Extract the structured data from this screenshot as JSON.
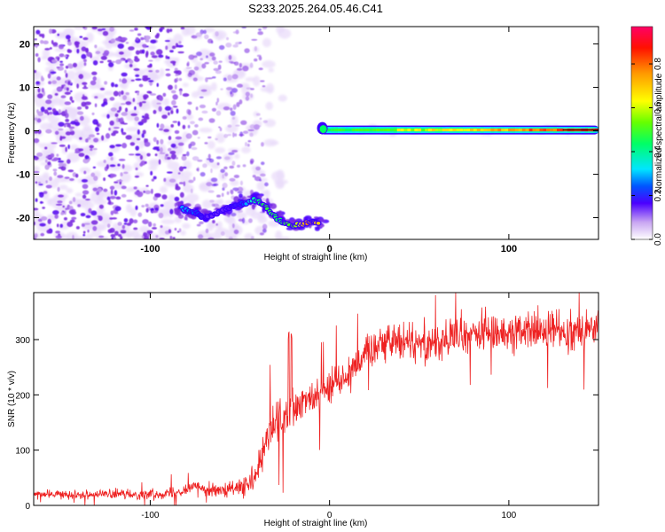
{
  "title": "S233.2025.264.05.46.C41",
  "colors": {
    "snr_line": "#ee2222",
    "frame": "#000000",
    "colormap": [
      "#ffffff",
      "#e6d7f7",
      "#b98aee",
      "#7a2be0",
      "#3a00ff",
      "#0077ff",
      "#00ffff",
      "#00ff66",
      "#66ff00",
      "#ffff00",
      "#ff8800",
      "#ff0000",
      "#ff0066"
    ]
  },
  "chart_data": [
    {
      "type": "heatmap",
      "xlabel": "Height of straight line (km)",
      "ylabel": "Frequency (Hz)",
      "xlim": [
        -165,
        150
      ],
      "ylim": [
        -25,
        24
      ],
      "x_ticks": [
        -100,
        0,
        100
      ],
      "x_tick_labels": [
        "-100",
        "0",
        "100"
      ],
      "y_ticks": [
        -20,
        -10,
        0,
        10,
        20
      ],
      "y_tick_labels": [
        "-20",
        "-10",
        "0",
        "10",
        "20"
      ],
      "colorbar": {
        "label": "Normalized spectral amplitude",
        "range": [
          0,
          0.97
        ],
        "ticks": [
          0.0,
          0.2,
          0.4,
          0.6,
          0.8
        ],
        "tick_labels": [
          "0.0",
          "0.2",
          "0.4",
          "0.6",
          "0.8"
        ]
      },
      "features": {
        "noise_region_x": [
          -165,
          -40
        ],
        "noise_density_region_x": [
          -165,
          -80
        ],
        "descending_trace": [
          {
            "x": -82,
            "y": -18,
            "amp": 0.3
          },
          {
            "x": -75,
            "y": -19,
            "amp": 0.25
          },
          {
            "x": -68,
            "y": -20,
            "amp": 0.15
          },
          {
            "x": -58,
            "y": -18,
            "amp": 0.15
          },
          {
            "x": -50,
            "y": -17,
            "amp": 0.2
          },
          {
            "x": -42,
            "y": -16,
            "amp": 0.4
          },
          {
            "x": -35,
            "y": -17.5,
            "amp": 0.5
          },
          {
            "x": -28,
            "y": -20.5,
            "amp": 0.45
          },
          {
            "x": -20,
            "y": -22,
            "amp": 0.55
          },
          {
            "x": -12,
            "y": -21,
            "amp": 0.8
          },
          {
            "x": -6,
            "y": -21,
            "amp": 0.7
          }
        ],
        "carrier_line": {
          "x_start": -5,
          "x_end": 150,
          "y": 0.2,
          "amp_start": 0.45,
          "amp_end": 0.9
        }
      }
    },
    {
      "type": "line",
      "xlabel": "Height of straight line (km)",
      "ylabel": "SNR (10 * v/v)",
      "xlim": [
        -165,
        150
      ],
      "ylim": [
        0,
        385
      ],
      "x_ticks": [
        -100,
        0,
        100
      ],
      "x_tick_labels": [
        "-100",
        "0",
        "100"
      ],
      "y_ticks": [
        0,
        100,
        200,
        300
      ],
      "y_tick_labels": [
        "0",
        "100",
        "200",
        "300"
      ],
      "series_envelope": {
        "x": [
          -165,
          -100,
          -85,
          -75,
          -60,
          -45,
          -40,
          -35,
          -30,
          -22,
          -15,
          0,
          10,
          20,
          28,
          40,
          60,
          80,
          100,
          120,
          150
        ],
        "y": [
          20,
          20,
          24,
          35,
          25,
          35,
          60,
          115,
          155,
          165,
          185,
          215,
          240,
          275,
          295,
          300,
          295,
          310,
          315,
          315,
          320
        ]
      },
      "noise_amplitude": {
        "x": [
          -165,
          -80,
          -60,
          -40,
          -30,
          -20,
          0,
          20,
          40,
          80,
          150
        ],
        "y": [
          8,
          12,
          15,
          30,
          60,
          45,
          40,
          40,
          45,
          45,
          40
        ]
      }
    }
  ]
}
